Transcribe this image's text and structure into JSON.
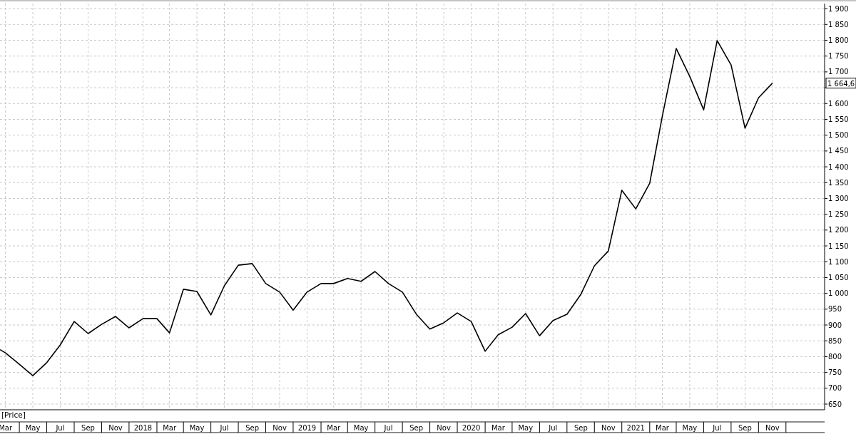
{
  "chart_data": {
    "type": "line",
    "annotations": [
      "[Price]",
      "1 664,6"
    ],
    "x": [
      "2017-02-17",
      "2017-03",
      "2017-04",
      "2017-05",
      "2017-06",
      "2017-07",
      "2017-08",
      "2017-09",
      "2017-10",
      "2017-11",
      "2017-12",
      "2018-01",
      "2018-02",
      "2018-03",
      "2018-04",
      "2018-05",
      "2018-06",
      "2018-07",
      "2018-08",
      "2018-09",
      "2018-10",
      "2018-11",
      "2018-12",
      "2019-01",
      "2019-02",
      "2019-03",
      "2019-04",
      "2019-05",
      "2019-06",
      "2019-07",
      "2019-08",
      "2019-09",
      "2019-10",
      "2019-11",
      "2019-12",
      "2020-01",
      "2020-02",
      "2020-03",
      "2020-04",
      "2020-05",
      "2020-06",
      "2020-07",
      "2020-08",
      "2020-09",
      "2020-10",
      "2020-11",
      "2020-12",
      "2021-01",
      "2021-02",
      "2021-03",
      "2021-04",
      "2021-05",
      "2021-06",
      "2021-07",
      "2021-08",
      "2021-09",
      "2021-10",
      "2021-11"
    ],
    "series": [
      {
        "color": "#000000",
        "values": [
          822,
          812,
          776,
          740,
          781,
          837,
          911,
          873,
          902,
          927,
          891,
          920,
          920,
          875,
          1013,
          1006,
          932,
          1024,
          1089,
          1094,
          1031,
          1004,
          947,
          1004,
          1031,
          1031,
          1047,
          1038,
          1069,
          1031,
          1004,
          934,
          887,
          907,
          938,
          911,
          817,
          869,
          893,
          936,
          866,
          914,
          934,
          997,
          1087,
          1134,
          1326,
          1267,
          1348,
          1560,
          1774,
          1686,
          1580,
          1799,
          1722,
          1522,
          1618,
          1664.6
        ]
      }
    ],
    "xlim": [
      "2017-02-17",
      "2022-02-25"
    ],
    "xticks": [
      {
        "value": "2017-03",
        "label": "Mar"
      },
      {
        "value": "2017-05",
        "label": "May"
      },
      {
        "value": "2017-07",
        "label": "Jul"
      },
      {
        "value": "2017-09",
        "label": "Sep"
      },
      {
        "value": "2017-11",
        "label": "Nov"
      },
      {
        "value": "2018-01",
        "label": "2018"
      },
      {
        "value": "2018-03",
        "label": "Mar"
      },
      {
        "value": "2018-05",
        "label": "May"
      },
      {
        "value": "2018-07",
        "label": "Jul"
      },
      {
        "value": "2018-09",
        "label": "Sep"
      },
      {
        "value": "2018-11",
        "label": "Nov"
      },
      {
        "value": "2019-01",
        "label": "2019"
      },
      {
        "value": "2019-03",
        "label": "Mar"
      },
      {
        "value": "2019-05",
        "label": "May"
      },
      {
        "value": "2019-07",
        "label": "Jul"
      },
      {
        "value": "2019-09",
        "label": "Sep"
      },
      {
        "value": "2019-11",
        "label": "Nov"
      },
      {
        "value": "2020-01",
        "label": "2020"
      },
      {
        "value": "2020-03",
        "label": "Mar"
      },
      {
        "value": "2020-05",
        "label": "May"
      },
      {
        "value": "2020-07",
        "label": "Jul"
      },
      {
        "value": "2020-09",
        "label": "Sep"
      },
      {
        "value": "2020-11",
        "label": "Nov"
      },
      {
        "value": "2021-01",
        "label": "2021"
      },
      {
        "value": "2021-03",
        "label": "Mar"
      },
      {
        "value": "2021-05",
        "label": "May"
      },
      {
        "value": "2021-07",
        "label": "Jul"
      },
      {
        "value": "2021-09",
        "label": "Sep"
      },
      {
        "value": "2021-11",
        "label": "Nov"
      }
    ],
    "ylim": [
      632,
      1916
    ],
    "yticks": [
      650,
      700,
      750,
      800,
      850,
      900,
      950,
      {
        "value": 1000,
        "label": "1 000"
      },
      {
        "value": 1050,
        "label": "1 050"
      },
      {
        "value": 1100,
        "label": "1 100"
      },
      {
        "value": 1150,
        "label": "1 150"
      },
      {
        "value": 1200,
        "label": "1 200"
      },
      {
        "value": 1250,
        "label": "1 250"
      },
      {
        "value": 1300,
        "label": "1 300"
      },
      {
        "value": 1350,
        "label": "1 350"
      },
      {
        "value": 1400,
        "label": "1 400"
      },
      {
        "value": 1450,
        "label": "1 450"
      },
      {
        "value": 1500,
        "label": "1 500"
      },
      {
        "value": 1550,
        "label": "1 550"
      },
      {
        "value": 1600,
        "label": "1 600"
      },
      {
        "value": 1650,
        "label": null
      },
      {
        "value": 1700,
        "label": "1 700"
      },
      {
        "value": 1750,
        "label": "1 750"
      },
      {
        "value": 1800,
        "label": "1 800"
      },
      {
        "value": 1850,
        "label": "1 850"
      },
      {
        "value": 1900,
        "label": "1 900"
      }
    ],
    "grid": true,
    "line_style": "solid"
  }
}
